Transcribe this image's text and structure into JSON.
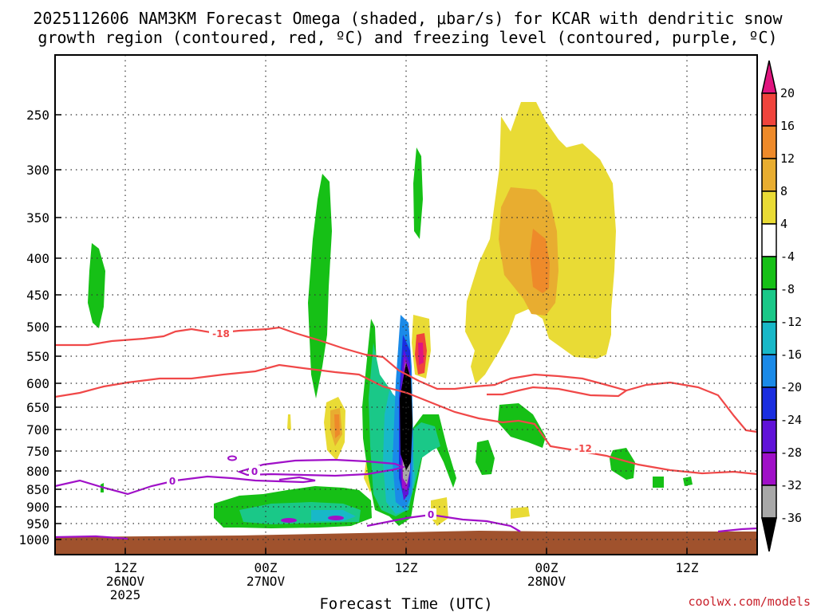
{
  "title": {
    "line1": "2025112606 NAM3KM Forecast Omega (shaded, μbar/s) for KCAR with dendritic snow",
    "line2": "growth region (contoured, red, ºC) and freezing level (contoured, purple, ºC)"
  },
  "credit": "coolwx.com/models",
  "chart_data": {
    "type": "heatmap",
    "title": "2025112606 NAM3KM Forecast Omega (shaded, μbar/s) for KCAR with dendritic snow growth region (contoured, red, ºC) and freezing level (contoured, purple, ºC)",
    "xlabel": "Forecast Time (UTC)",
    "ylabel": "",
    "x_units": "forecast hour",
    "xlim": [
      0,
      60
    ],
    "y_units": "hPa",
    "ylim": [
      1050,
      200
    ],
    "y_ticks": [
      {
        "value": 250,
        "label": "250"
      },
      {
        "value": 300,
        "label": "300"
      },
      {
        "value": 350,
        "label": "350"
      },
      {
        "value": 400,
        "label": "400"
      },
      {
        "value": 450,
        "label": "450"
      },
      {
        "value": 500,
        "label": "500"
      },
      {
        "value": 550,
        "label": "550"
      },
      {
        "value": 600,
        "label": "600"
      },
      {
        "value": 650,
        "label": "650"
      },
      {
        "value": 700,
        "label": "700"
      },
      {
        "value": 750,
        "label": "750"
      },
      {
        "value": 800,
        "label": "800"
      },
      {
        "value": 850,
        "label": "850"
      },
      {
        "value": 900,
        "label": "900"
      },
      {
        "value": 950,
        "label": "950"
      },
      {
        "value": 1000,
        "label": "1000"
      }
    ],
    "x_ticks": [
      {
        "value": 6,
        "lines": [
          "12Z",
          "26NOV",
          "2025"
        ]
      },
      {
        "value": 18,
        "lines": [
          "00Z",
          "27NOV"
        ]
      },
      {
        "value": 30,
        "lines": [
          "12Z"
        ]
      },
      {
        "value": 42,
        "lines": [
          "00Z",
          "28NOV"
        ]
      },
      {
        "value": 54,
        "lines": [
          "12Z"
        ]
      }
    ],
    "colorbar": {
      "levels": [
        "20",
        "16",
        "12",
        "8",
        "4",
        "-4",
        "-8",
        "-12",
        "-16",
        "-20",
        "-24",
        "-28",
        "-32",
        "-36"
      ],
      "colors": [
        "#e0157f",
        "#f0443c",
        "#ee8a2a",
        "#e8ad30",
        "#e9db35",
        "#ffffff",
        "#16c016",
        "#1ac888",
        "#18b8c8",
        "#1a8ae8",
        "#1a2ee0",
        "#6012d8",
        "#a010c8",
        "#a8a8a8",
        "#000000"
      ]
    },
    "contour_labels": [
      {
        "text": "-18",
        "series": "dendritic",
        "color": "#f04848"
      },
      {
        "text": "-12",
        "series": "dendritic",
        "color": "#f04848"
      },
      {
        "text": "0",
        "series": "freezing",
        "color": "#a010c8"
      },
      {
        "text": "0",
        "series": "freezing",
        "color": "#a010c8"
      },
      {
        "text": "0",
        "series": "freezing",
        "color": "#a010c8"
      }
    ],
    "series": [
      {
        "name": "omega_shaded",
        "units": "μbar/s"
      },
      {
        "name": "dendritic_growth_contour",
        "color": "#f04848",
        "units": "ºC",
        "levels": [
          -18,
          -12
        ]
      },
      {
        "name": "freezing_level_contour",
        "color": "#a010c8",
        "units": "ºC",
        "levels": [
          0
        ]
      }
    ]
  }
}
